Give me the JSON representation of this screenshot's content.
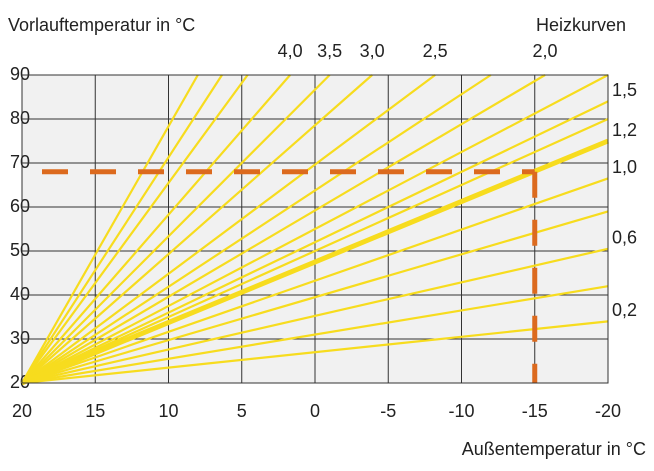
{
  "chart_data": {
    "type": "line",
    "title": "Heizkurven",
    "ylabel": "Vorlauftemperatur in °C",
    "xlabel": "Außentemperatur in °C",
    "xlim": [
      20,
      -20
    ],
    "xticks": [
      20,
      15,
      10,
      5,
      0,
      -5,
      -10,
      -15,
      -20
    ],
    "ylim": [
      20,
      90
    ],
    "yticks": [
      20,
      30,
      40,
      50,
      60,
      70,
      80,
      90
    ],
    "grid": true,
    "background": "#f1f1f1",
    "color": "#f7dc1e",
    "series": [
      {
        "x": [
          20,
          8.0
        ],
        "values": [
          20,
          90
        ]
      },
      {
        "x": [
          20,
          6.35
        ],
        "values": [
          20,
          90
        ]
      },
      {
        "x": [
          20,
          4.6
        ],
        "values": [
          20,
          90
        ]
      },
      {
        "name": "4,0",
        "x": [
          20,
          1.7
        ],
        "values": [
          20,
          90
        ]
      },
      {
        "name": "3,5",
        "x": [
          20,
          -1.0
        ],
        "values": [
          20,
          90
        ]
      },
      {
        "name": "3,0",
        "x": [
          20,
          -3.9
        ],
        "values": [
          20,
          90
        ]
      },
      {
        "name": "2,5",
        "x": [
          20,
          -8.2
        ],
        "values": [
          20,
          90
        ]
      },
      {
        "x": [
          20,
          -12.0
        ],
        "values": [
          20,
          90
        ]
      },
      {
        "name": "2,0",
        "x": [
          20,
          -15.7
        ],
        "values": [
          20,
          90
        ]
      },
      {
        "x": [
          20,
          -20
        ],
        "values": [
          20,
          90
        ]
      },
      {
        "name": "1,5",
        "x": [
          20,
          -20
        ],
        "values": [
          20,
          84
        ]
      },
      {
        "x": [
          20,
          -20
        ],
        "values": [
          20,
          80
        ]
      },
      {
        "name": "1,2",
        "x": [
          20,
          -20
        ],
        "values": [
          20,
          75
        ],
        "thick": true
      },
      {
        "name": "1,0",
        "x": [
          20,
          -20
        ],
        "values": [
          20,
          66.5
        ]
      },
      {
        "x": [
          20,
          -20
        ],
        "values": [
          20,
          59
        ]
      },
      {
        "name": "0,6",
        "x": [
          20,
          -20
        ],
        "values": [
          20,
          50.5
        ]
      },
      {
        "x": [
          20,
          -20
        ],
        "values": [
          20,
          42
        ]
      },
      {
        "name": "0,2",
        "x": [
          20,
          -20
        ],
        "values": [
          20,
          34
        ]
      }
    ],
    "reference": {
      "x": -15,
      "y": 68,
      "color": "#dc6a1e"
    }
  }
}
